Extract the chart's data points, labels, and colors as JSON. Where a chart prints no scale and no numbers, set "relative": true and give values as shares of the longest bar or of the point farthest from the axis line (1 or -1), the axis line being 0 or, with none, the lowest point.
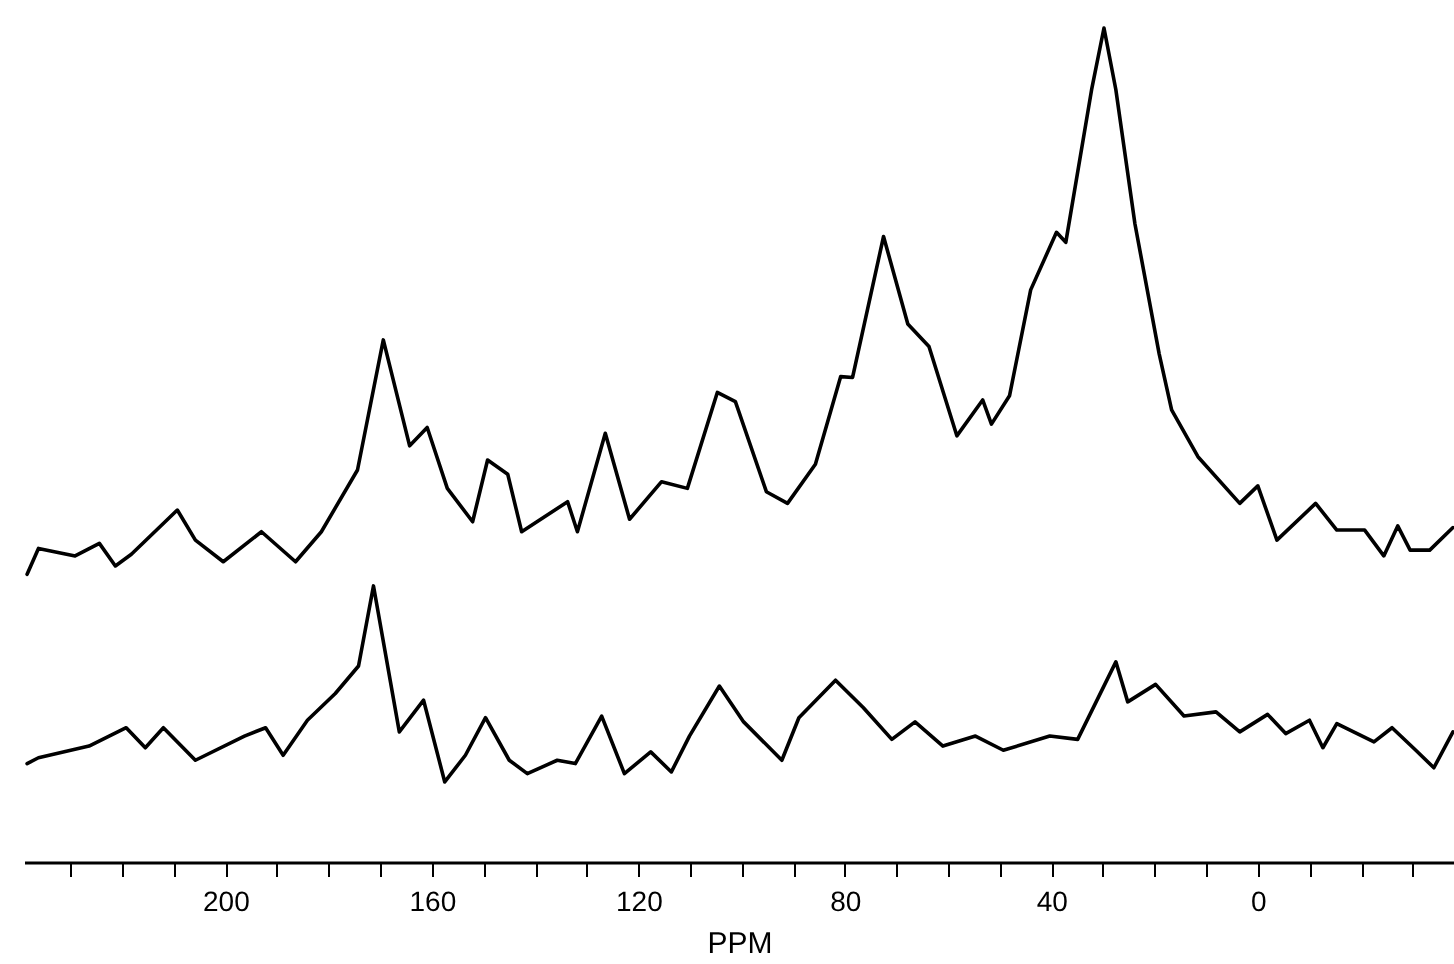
{
  "chart_data": {
    "type": "line",
    "xlabel": "PPM",
    "relative": true,
    "xlim": [
      239,
      -38
    ],
    "xticks": [
      {
        "value": 230,
        "label": null
      },
      {
        "value": 220,
        "label": null
      },
      {
        "value": 210,
        "label": null
      },
      200,
      {
        "value": 190,
        "label": null
      },
      {
        "value": 180,
        "label": null
      },
      {
        "value": 170,
        "label": null
      },
      160,
      {
        "value": 150,
        "label": null
      },
      {
        "value": 140,
        "label": null
      },
      {
        "value": 130,
        "label": null
      },
      120,
      {
        "value": 110,
        "label": null
      },
      {
        "value": 100,
        "label": null
      },
      {
        "value": 90,
        "label": null
      },
      80,
      {
        "value": 70,
        "label": null
      },
      {
        "value": 60,
        "label": null
      },
      {
        "value": 50,
        "label": null
      },
      40,
      {
        "value": 30,
        "label": null
      },
      {
        "value": 20,
        "label": null
      },
      {
        "value": 10,
        "label": null
      },
      0,
      {
        "value": -10,
        "label": null
      },
      {
        "value": -20,
        "label": null
      },
      {
        "value": -30,
        "label": null
      }
    ],
    "grid": false,
    "marker": "none",
    "line_style": "solid",
    "series": [
      {
        "color": "#000000",
        "x": [
          238.4,
          236.2,
          229.1,
          224.4,
          221.3,
          218.2,
          209.3,
          205.8,
          200.4,
          193.0,
          186.4,
          181.4,
          174.4,
          169.4,
          164.3,
          160.9,
          157.0,
          152.1,
          149.2,
          145.3,
          142.6,
          133.7,
          131.8,
          126.4,
          121.7,
          115.5,
          110.5,
          104.7,
          101.2,
          95.2,
          91.1,
          85.7,
          80.8,
          78.5,
          72.5,
          67.8,
          63.7,
          58.3,
          53.3,
          51.6,
          48.1,
          44.0,
          39.0,
          37.2,
          32.2,
          29.8,
          27.5,
          23.8,
          19.1,
          16.7,
          11.6,
          3.5,
          0,
          -3.7,
          -11.2,
          -15.3,
          -20.7,
          -24.4,
          -27.1,
          -29.5,
          -33.3,
          -37.8
        ],
        "values": [
          0.345,
          0.376,
          0.367,
          0.382,
          0.355,
          0.369,
          0.422,
          0.386,
          0.36,
          0.396,
          0.36,
          0.396,
          0.47,
          0.626,
          0.499,
          0.521,
          0.448,
          0.408,
          0.482,
          0.465,
          0.396,
          0.432,
          0.396,
          0.514,
          0.411,
          0.456,
          0.448,
          0.563,
          0.552,
          0.444,
          0.43,
          0.477,
          0.582,
          0.581,
          0.75,
          0.645,
          0.618,
          0.511,
          0.554,
          0.525,
          0.559,
          0.686,
          0.755,
          0.743,
          0.926,
          1.0,
          0.926,
          0.765,
          0.609,
          0.542,
          0.486,
          0.43,
          0.451,
          0.386,
          0.43,
          0.398,
          0.398,
          0.367,
          0.403,
          0.374,
          0.374,
          0.401
        ]
      },
      {
        "color": "#000000",
        "x": [
          238.4,
          236.2,
          226.4,
          219.2,
          215.5,
          212.0,
          205.8,
          196.3,
          192.2,
          188.8,
          184.1,
          178.7,
          174.2,
          171.3,
          166.3,
          161.6,
          157.5,
          153.5,
          149.6,
          145.0,
          141.5,
          135.7,
          132.2,
          127.1,
          122.7,
          117.6,
          113.6,
          110.1,
          104.3,
          99.6,
          92.2,
          88.9,
          81.8,
          76.4,
          70.9,
          66.4,
          61.0,
          54.7,
          49.3,
          40.3,
          34.9,
          27.5,
          25.2,
          19.8,
          14.3,
          8.1,
          3.5,
          -1.9,
          -5.4,
          -10.0,
          -12.6,
          -15.3,
          -22.5,
          -26.0,
          -30.6,
          -34.1,
          -37.8
        ],
        "values": [
          0.118,
          0.125,
          0.139,
          0.161,
          0.137,
          0.161,
          0.122,
          0.151,
          0.161,
          0.128,
          0.17,
          0.202,
          0.235,
          0.331,
          0.156,
          0.194,
          0.096,
          0.128,
          0.173,
          0.122,
          0.106,
          0.122,
          0.118,
          0.175,
          0.106,
          0.132,
          0.108,
          0.151,
          0.211,
          0.168,
          0.122,
          0.173,
          0.218,
          0.185,
          0.147,
          0.168,
          0.139,
          0.151,
          0.134,
          0.151,
          0.147,
          0.24,
          0.192,
          0.213,
          0.175,
          0.18,
          0.156,
          0.177,
          0.154,
          0.17,
          0.137,
          0.166,
          0.144,
          0.161,
          0.134,
          0.113,
          0.156
        ]
      }
    ]
  }
}
